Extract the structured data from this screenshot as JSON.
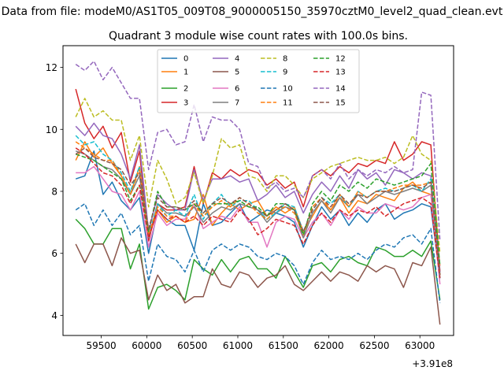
{
  "figure": {
    "suptitle": "Data from file: modeM0/AS1T05_009T08_9000005150_35970cztM0_level2_quad_clean.evt",
    "title": "Quadrant 3 module wise count rates with 100.0s bins.",
    "x_offset_label": "+3.91e8"
  },
  "chart_data": {
    "type": "line",
    "title": "Quadrant 3 module wise count rates with 100.0s bins.",
    "xlabel": "",
    "ylabel": "",
    "x_offset": 391000000,
    "xlim": [
      59080,
      63370
    ],
    "ylim": [
      3.35,
      12.7
    ],
    "x_ticks": [
      59500,
      60000,
      60500,
      61000,
      61500,
      62000,
      62500,
      63000
    ],
    "x_tick_labels": [
      "59500",
      "60000",
      "60500",
      "61000",
      "61500",
      "62000",
      "62500",
      "63000"
    ],
    "y_ticks": [
      4,
      6,
      8,
      10,
      12
    ],
    "y_tick_labels": [
      "4",
      "6",
      "8",
      "10",
      "12"
    ],
    "grid": false,
    "legend_position": "top-center",
    "x": [
      59220,
      59320,
      59420,
      59520,
      59620,
      59720,
      59820,
      59920,
      60020,
      60120,
      60220,
      60320,
      60420,
      60520,
      60620,
      60720,
      60820,
      60920,
      61020,
      61120,
      61220,
      61320,
      61420,
      61520,
      61620,
      61720,
      61820,
      61920,
      62020,
      62120,
      62220,
      62320,
      62420,
      62520,
      62620,
      62720,
      62820,
      62920,
      63020,
      63120,
      63220
    ],
    "series": [
      {
        "name": "0",
        "color": "#1f77b4",
        "dash": "solid",
        "values": [
          8.4,
          8.5,
          9.3,
          7.9,
          8.3,
          7.7,
          7.4,
          7.8,
          6.0,
          7.4,
          7.1,
          6.9,
          6.9,
          6.1,
          7.6,
          6.9,
          7.0,
          7.3,
          7.6,
          7.0,
          7.2,
          7.4,
          7.3,
          7.2,
          7.0,
          6.2,
          6.9,
          7.5,
          7.1,
          7.4,
          6.9,
          7.3,
          7.0,
          7.4,
          7.6,
          7.1,
          7.3,
          7.4,
          7.6,
          7.5,
          5.2
        ]
      },
      {
        "name": "1",
        "color": "#ff7f0e",
        "dash": "solid",
        "values": [
          9.0,
          9.6,
          9.1,
          9.4,
          8.9,
          8.5,
          7.9,
          8.8,
          6.5,
          7.4,
          7.0,
          7.2,
          7.0,
          7.1,
          7.9,
          6.9,
          7.3,
          7.6,
          7.4,
          7.6,
          7.7,
          7.2,
          7.5,
          7.3,
          7.5,
          6.7,
          7.2,
          7.7,
          7.4,
          7.8,
          7.3,
          7.7,
          7.6,
          7.9,
          7.8,
          7.7,
          8.1,
          8.3,
          8.0,
          7.9,
          5.6
        ]
      },
      {
        "name": "2",
        "color": "#2ca02c",
        "dash": "solid",
        "values": [
          7.1,
          6.8,
          6.3,
          6.3,
          6.8,
          6.8,
          5.5,
          6.3,
          4.2,
          4.9,
          5.0,
          4.8,
          4.5,
          5.8,
          5.5,
          5.3,
          5.8,
          5.4,
          5.8,
          5.9,
          5.5,
          5.5,
          5.2,
          5.9,
          5.4,
          4.9,
          5.6,
          5.7,
          5.4,
          5.8,
          5.9,
          5.7,
          5.6,
          6.2,
          6.1,
          5.9,
          5.9,
          6.1,
          5.9,
          6.4,
          4.5
        ]
      },
      {
        "name": "3",
        "color": "#d62728",
        "dash": "solid",
        "values": [
          11.3,
          10.2,
          9.7,
          10.1,
          9.4,
          9.9,
          8.3,
          9.3,
          6.4,
          7.6,
          7.4,
          7.4,
          7.5,
          8.8,
          7.6,
          8.6,
          8.4,
          8.7,
          8.5,
          8.7,
          8.6,
          8.2,
          8.4,
          8.1,
          8.3,
          7.5,
          8.5,
          8.7,
          8.5,
          8.8,
          8.6,
          8.9,
          8.8,
          9.0,
          8.9,
          9.6,
          9.0,
          9.2,
          9.6,
          9.5,
          5.4
        ]
      },
      {
        "name": "4",
        "color": "#9467bd",
        "dash": "solid",
        "values": [
          10.1,
          9.8,
          10.2,
          9.8,
          9.7,
          9.2,
          8.4,
          9.5,
          6.7,
          7.9,
          7.6,
          7.4,
          7.4,
          8.7,
          7.7,
          8.4,
          8.4,
          8.5,
          8.3,
          8.4,
          7.7,
          7.9,
          8.2,
          7.8,
          8.0,
          7.3,
          7.9,
          8.3,
          8.0,
          8.5,
          8.1,
          8.7,
          8.4,
          8.6,
          8.2,
          8.7,
          8.6,
          8.4,
          8.6,
          8.5,
          5.4
        ]
      },
      {
        "name": "5",
        "color": "#8c564b",
        "dash": "solid",
        "values": [
          6.3,
          5.7,
          6.3,
          6.3,
          5.6,
          6.5,
          6.0,
          6.1,
          4.5,
          5.3,
          4.8,
          5.0,
          4.4,
          4.6,
          4.6,
          5.5,
          5.0,
          4.9,
          5.4,
          5.3,
          4.9,
          5.2,
          5.3,
          5.6,
          5.0,
          4.8,
          5.1,
          5.4,
          5.1,
          5.4,
          5.3,
          5.1,
          5.6,
          5.4,
          5.6,
          5.5,
          4.9,
          5.7,
          5.6,
          6.2,
          3.7
        ]
      },
      {
        "name": "6",
        "color": "#e377c2",
        "dash": "solid",
        "values": [
          8.6,
          8.6,
          8.8,
          8.4,
          8.0,
          7.9,
          7.4,
          8.0,
          6.2,
          7.3,
          6.9,
          7.1,
          7.1,
          7.6,
          6.8,
          7.0,
          7.2,
          7.1,
          7.5,
          7.0,
          7.0,
          6.2,
          7.0,
          7.2,
          7.1,
          6.5,
          7.0,
          7.3,
          6.9,
          7.4,
          7.1,
          7.5,
          7.3,
          7.3,
          7.6,
          7.5,
          7.4,
          7.5,
          7.8,
          7.9,
          5.0
        ]
      },
      {
        "name": "7",
        "color": "#7f7f7f",
        "dash": "solid",
        "values": [
          9.3,
          9.2,
          9.0,
          8.8,
          8.7,
          8.4,
          7.9,
          8.5,
          6.5,
          7.6,
          7.3,
          7.3,
          7.2,
          7.5,
          7.0,
          7.3,
          7.5,
          7.4,
          7.6,
          7.5,
          7.4,
          7.0,
          7.3,
          7.5,
          7.4,
          6.5,
          7.3,
          7.7,
          7.3,
          7.8,
          7.5,
          7.9,
          7.6,
          7.8,
          8.0,
          7.9,
          8.0,
          8.1,
          8.0,
          8.2,
          5.3
        ]
      },
      {
        "name": "8",
        "color": "#bcbd22",
        "dash": "dashed",
        "values": [
          10.4,
          11.0,
          10.4,
          10.6,
          10.3,
          10.3,
          9.0,
          9.8,
          7.5,
          9.0,
          8.4,
          7.6,
          7.8,
          8.6,
          7.6,
          8.5,
          9.7,
          9.4,
          9.5,
          8.5,
          8.4,
          8.0,
          8.5,
          8.5,
          8.2,
          7.8,
          8.4,
          8.6,
          8.8,
          8.9,
          9.0,
          9.1,
          9.0,
          9.0,
          9.1,
          8.9,
          9.1,
          9.8,
          9.2,
          9.0,
          6.0
        ]
      },
      {
        "name": "9",
        "color": "#17becf",
        "dash": "dashed",
        "values": [
          9.8,
          9.5,
          9.6,
          9.2,
          9.0,
          8.6,
          8.0,
          8.8,
          6.6,
          7.6,
          7.2,
          7.4,
          7.2,
          7.9,
          7.1,
          7.6,
          7.9,
          7.5,
          7.7,
          7.7,
          7.4,
          7.1,
          7.3,
          7.6,
          7.5,
          6.7,
          7.4,
          7.8,
          7.6,
          7.9,
          7.5,
          8.0,
          7.8,
          8.0,
          8.1,
          8.0,
          8.1,
          8.2,
          8.0,
          8.4,
          5.2
        ]
      },
      {
        "name": "10",
        "color": "#1f77b4",
        "dash": "dashed",
        "values": [
          7.4,
          7.6,
          6.9,
          7.4,
          6.9,
          7.3,
          6.6,
          6.9,
          5.1,
          6.3,
          5.9,
          5.8,
          5.4,
          6.1,
          5.4,
          6.1,
          6.3,
          6.1,
          6.3,
          6.2,
          5.9,
          5.8,
          6.0,
          5.9,
          5.6,
          5.0,
          5.7,
          6.1,
          5.8,
          5.9,
          5.8,
          6.0,
          5.8,
          6.1,
          6.3,
          6.2,
          6.5,
          6.6,
          6.3,
          6.8,
          4.4
        ]
      },
      {
        "name": "11",
        "color": "#ff7f0e",
        "dash": "dashed",
        "values": [
          9.6,
          9.4,
          9.2,
          9.0,
          9.0,
          8.5,
          7.9,
          8.7,
          6.6,
          7.5,
          7.2,
          7.2,
          7.0,
          7.6,
          7.2,
          7.5,
          7.7,
          7.5,
          7.8,
          7.6,
          7.3,
          7.1,
          7.4,
          7.5,
          7.3,
          6.6,
          7.5,
          7.8,
          7.4,
          7.9,
          7.5,
          8.0,
          7.8,
          8.0,
          8.0,
          8.1,
          8.2,
          8.2,
          8.2,
          8.3,
          5.3
        ]
      },
      {
        "name": "12",
        "color": "#2ca02c",
        "dash": "dashed",
        "values": [
          9.2,
          9.1,
          9.0,
          8.8,
          8.6,
          8.4,
          7.7,
          8.2,
          6.7,
          8.0,
          7.5,
          7.5,
          7.4,
          7.6,
          7.3,
          7.6,
          7.6,
          7.6,
          7.7,
          7.5,
          7.5,
          7.2,
          7.6,
          7.6,
          7.4,
          6.6,
          7.6,
          8.0,
          7.7,
          8.2,
          8.0,
          8.3,
          8.1,
          8.4,
          8.3,
          8.2,
          8.3,
          8.4,
          8.5,
          8.9,
          5.6
        ]
      },
      {
        "name": "13",
        "color": "#d62728",
        "dash": "dashed",
        "values": [
          9.4,
          9.2,
          8.9,
          8.6,
          8.5,
          8.2,
          7.6,
          8.2,
          6.5,
          7.4,
          7.1,
          7.2,
          7.0,
          7.2,
          6.9,
          7.2,
          7.1,
          7.0,
          7.4,
          7.1,
          6.6,
          6.8,
          7.1,
          7.0,
          6.9,
          6.3,
          6.9,
          7.3,
          7.0,
          7.4,
          7.2,
          7.4,
          7.3,
          7.5,
          7.2,
          7.4,
          7.6,
          7.7,
          7.8,
          7.6,
          5.2
        ]
      },
      {
        "name": "14",
        "color": "#9467bd",
        "dash": "dashed",
        "values": [
          12.1,
          11.9,
          12.2,
          11.6,
          12.0,
          11.5,
          11.0,
          11.0,
          8.7,
          9.9,
          10.0,
          9.5,
          9.6,
          10.8,
          9.6,
          10.4,
          10.3,
          10.3,
          10.0,
          8.9,
          8.8,
          8.1,
          8.3,
          8.0,
          8.1,
          7.8,
          8.5,
          8.7,
          8.4,
          8.9,
          8.4,
          8.7,
          8.5,
          8.7,
          8.6,
          8.8,
          8.6,
          8.7,
          11.2,
          11.1,
          6.4
        ]
      },
      {
        "name": "15",
        "color": "#8c564b",
        "dash": "dashed",
        "values": [
          9.2,
          9.4,
          9.1,
          9.0,
          8.9,
          8.7,
          8.2,
          8.6,
          6.8,
          7.8,
          7.5,
          7.5,
          7.4,
          7.7,
          7.3,
          7.6,
          7.8,
          7.6,
          7.8,
          7.6,
          7.4,
          7.2,
          7.4,
          7.6,
          7.4,
          6.7,
          7.4,
          7.8,
          7.5,
          7.9,
          7.6,
          7.9,
          7.8,
          8.0,
          8.0,
          8.0,
          8.1,
          8.2,
          8.1,
          8.3,
          5.3
        ]
      }
    ]
  }
}
